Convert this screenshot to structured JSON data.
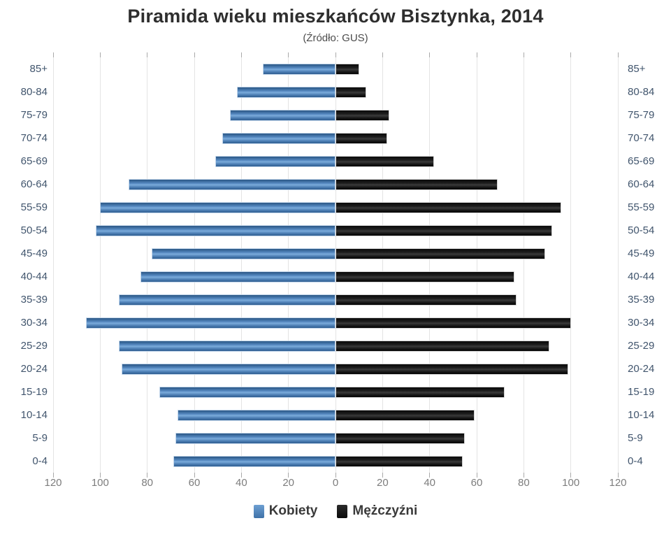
{
  "title": "Piramida wieku mieszkańców Bisztynka, 2014",
  "subtitle": "(Źródło: GUS)",
  "legend": {
    "women_label": "Kobiety",
    "men_label": "Mężczyźni"
  },
  "colors": {
    "women_bar": "#4a7cb1",
    "men_bar": "#141414",
    "grid": "#e4e4e4",
    "tick_mark": "#a9a9a9",
    "axis_text": "#7d7d7d",
    "category_text": "#41556d",
    "title_text": "#2e2e2e",
    "legend_text": "#3a3a3a"
  },
  "chart_data": {
    "type": "bar",
    "variant": "population-pyramid",
    "title": "Piramida wieku mieszkańców Bisztynka, 2014",
    "subtitle": "(Źródło: GUS)",
    "categories": [
      "85+",
      "80-84",
      "75-79",
      "70-74",
      "65-69",
      "60-64",
      "55-59",
      "50-54",
      "45-49",
      "40-44",
      "35-39",
      "30-34",
      "25-29",
      "20-24",
      "15-19",
      "10-14",
      "5-9",
      "0-4"
    ],
    "series": [
      {
        "name": "Kobiety",
        "side": "left",
        "values": [
          31,
          42,
          45,
          48,
          51,
          88,
          100,
          102,
          78,
          83,
          92,
          106,
          92,
          91,
          75,
          67,
          68,
          69
        ]
      },
      {
        "name": "Mężczyźni",
        "side": "right",
        "values": [
          10,
          13,
          23,
          22,
          42,
          69,
          96,
          92,
          89,
          76,
          77,
          100,
          91,
          99,
          72,
          59,
          55,
          54
        ]
      }
    ],
    "axis_max": 120,
    "x_tick_labels": [
      "120",
      "100",
      "80",
      "60",
      "40",
      "20",
      "0",
      "20",
      "40",
      "60",
      "80",
      "100",
      "120"
    ],
    "grid": true,
    "legend_position": "bottom"
  }
}
